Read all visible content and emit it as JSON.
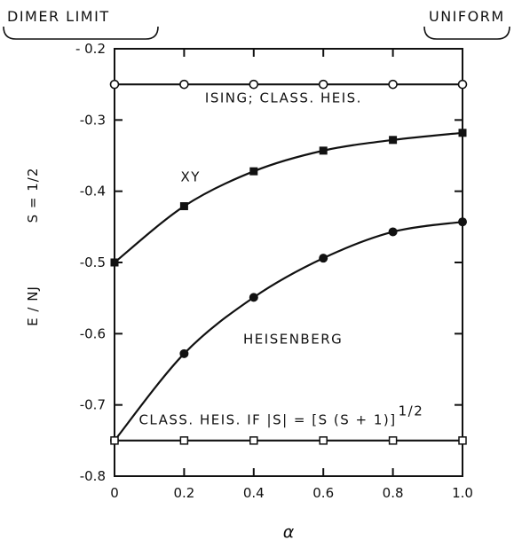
{
  "chart_data": {
    "type": "line",
    "xlabel": "α",
    "ylabel": "E / NJ",
    "ylabel_right": "S = 1/2",
    "xlim": [
      0,
      1.0
    ],
    "ylim": [
      -0.8,
      -0.2
    ],
    "x_ticks": [
      0,
      0.2,
      0.4,
      0.6,
      0.8,
      1.0
    ],
    "x_tick_labels": [
      "0",
      "0.2",
      "0.4",
      "0.6",
      "0.8",
      "1.0"
    ],
    "y_ticks": [
      -0.2,
      -0.3,
      -0.4,
      -0.5,
      -0.6,
      -0.7,
      -0.8
    ],
    "y_tick_labels": [
      "- 0.2",
      "-0.3",
      "-0.4",
      "-0.5",
      "-0.6",
      "-0.7",
      "-0.8"
    ],
    "top_labels": {
      "left": "DIMER LIMIT",
      "right": "UNIFORM"
    },
    "grid": false,
    "legend": "none",
    "series": [
      {
        "marker": "open-circle",
        "x": [
          0,
          0.2,
          0.4,
          0.6,
          0.8,
          1.0
        ],
        "values": [
          -0.25,
          -0.25,
          -0.25,
          -0.25,
          -0.25,
          -0.25
        ]
      },
      {
        "marker": "filled-square",
        "x": [
          0,
          0.2,
          0.4,
          0.6,
          0.8,
          1.0
        ],
        "values": [
          -0.5,
          -0.421,
          -0.372,
          -0.343,
          -0.328,
          -0.318
        ]
      },
      {
        "marker": "filled-circle",
        "x": [
          0,
          0.2,
          0.4,
          0.6,
          0.8,
          1.0
        ],
        "values": [
          -0.75,
          -0.628,
          -0.549,
          -0.494,
          -0.457,
          -0.443
        ]
      },
      {
        "marker": "open-square",
        "x": [
          0,
          0.2,
          0.4,
          0.6,
          0.8,
          1.0
        ],
        "values": [
          -0.75,
          -0.75,
          -0.75,
          -0.75,
          -0.75,
          -0.75
        ]
      }
    ],
    "annotations": [
      {
        "text": "ISING; CLASS. HEIS.",
        "x": 0.26,
        "y": -0.275
      },
      {
        "text": "XY",
        "x": 0.19,
        "y": -0.386
      },
      {
        "text": "HEISENBERG",
        "x": 0.37,
        "y": -0.614
      },
      {
        "text": "CLASS. HEIS. IF |S| = [S (S + 1)]",
        "x": 0.07,
        "y": -0.727
      }
    ],
    "annotation_superscript": "1/2"
  }
}
